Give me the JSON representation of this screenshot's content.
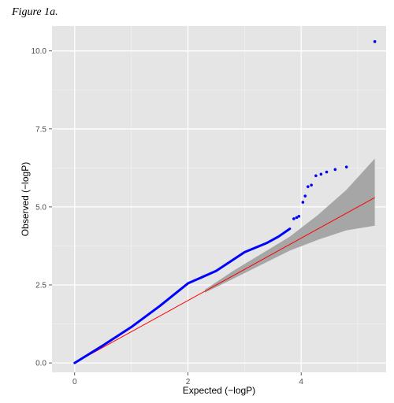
{
  "figure_label": "Figure 1a.",
  "chart_data": {
    "type": "scatter",
    "title": "",
    "xlabel": "Expected (−logP)",
    "ylabel": "Observed (−logP)",
    "xlim": [
      -0.4,
      5.5
    ],
    "ylim": [
      -0.3,
      10.8
    ],
    "x_ticks": [
      {
        "value": 0,
        "label": "0"
      },
      {
        "value": 2,
        "label": "2"
      },
      {
        "value": 4,
        "label": "4"
      }
    ],
    "y_ticks": [
      {
        "value": 0,
        "label": "0.0"
      },
      {
        "value": 2.5,
        "label": "2.5"
      },
      {
        "value": 5,
        "label": "5.0"
      },
      {
        "value": 7.5,
        "label": "7.5"
      },
      {
        "value": 10,
        "label": "10.0"
      }
    ],
    "grid": true,
    "background": "#e5e5e5",
    "point_color": "#0000ff",
    "reference_line": {
      "from": [
        0,
        0
      ],
      "to": [
        5.3,
        5.3
      ],
      "color": "#ff0000"
    },
    "confidence_band_color": "#a6a6a6",
    "confidence_band": {
      "upper": [
        [
          2.3,
          2.35
        ],
        [
          2.8,
          2.95
        ],
        [
          3.3,
          3.5
        ],
        [
          3.8,
          4.05
        ],
        [
          4.3,
          4.75
        ],
        [
          4.8,
          5.55
        ],
        [
          5.3,
          6.55
        ]
      ],
      "lower": [
        [
          2.3,
          2.25
        ],
        [
          2.8,
          2.7
        ],
        [
          3.3,
          3.15
        ],
        [
          3.8,
          3.6
        ],
        [
          4.3,
          3.95
        ],
        [
          4.8,
          4.25
        ],
        [
          5.3,
          4.4
        ]
      ]
    },
    "dense_curve": [
      [
        0,
        0
      ],
      [
        0.5,
        0.56
      ],
      [
        1.0,
        1.15
      ],
      [
        1.5,
        1.82
      ],
      [
        2.0,
        2.55
      ],
      [
        2.5,
        2.95
      ],
      [
        3.0,
        3.55
      ],
      [
        3.4,
        3.85
      ],
      [
        3.6,
        4.05
      ],
      [
        3.8,
        4.3
      ]
    ],
    "points": [
      [
        3.87,
        4.62
      ],
      [
        3.92,
        4.66
      ],
      [
        3.96,
        4.7
      ],
      [
        4.03,
        5.15
      ],
      [
        4.07,
        5.35
      ],
      [
        4.12,
        5.65
      ],
      [
        4.18,
        5.7
      ],
      [
        4.26,
        6.0
      ],
      [
        4.35,
        6.05
      ],
      [
        4.45,
        6.12
      ],
      [
        4.6,
        6.2
      ],
      [
        4.8,
        6.28
      ],
      [
        5.3,
        10.3
      ]
    ]
  }
}
